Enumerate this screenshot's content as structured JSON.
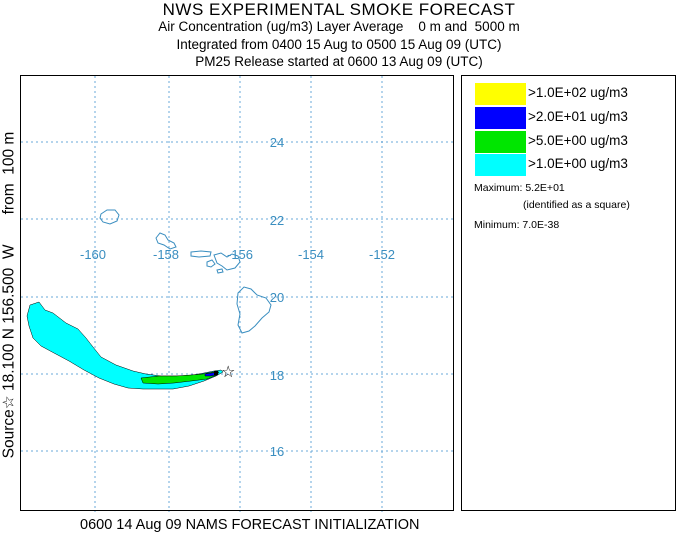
{
  "header": {
    "title": "NWS EXPERIMENTAL SMOKE FORECAST",
    "line1": "Air Concentration (ug/m3) Layer Average    0 m and  5000 m",
    "line2": "Integrated from 0400 15 Aug to 0500 15 Aug 09 (UTC)",
    "line3": "PM25 Release started at 0600 13 Aug 09 (UTC)"
  },
  "side_label": "Source☆ 18.100 N 156.500  W       from  100 m",
  "footer": "0600 14 Aug 09 NAMS FORECAST INITIALIZATION",
  "map": {
    "lon_labels": [
      "-160",
      "-158",
      "-156",
      "-154",
      "-152"
    ],
    "lat_labels": [
      "24",
      "22",
      "20",
      "18",
      "16"
    ],
    "gridline_color": "#6aa8d8",
    "label_color": "#3a8ec0",
    "coast_color": "#3a8ec0",
    "source_marker": "star-icon"
  },
  "legend": {
    "items": [
      {
        "label": ">1.0E+02 ug/m3",
        "color": "#ffff00"
      },
      {
        "label": ">2.0E+01 ug/m3",
        "color": "#0000ff"
      },
      {
        "label": ">5.0E+00 ug/m3",
        "color": "#00e600"
      },
      {
        "label": ">1.0E+00 ug/m3",
        "color": "#00ffff"
      }
    ],
    "max_label": "Maximum: 5.2E+01",
    "max_note": "(identified as a square)",
    "min_label": "Minimum: 7.0E-38"
  }
}
